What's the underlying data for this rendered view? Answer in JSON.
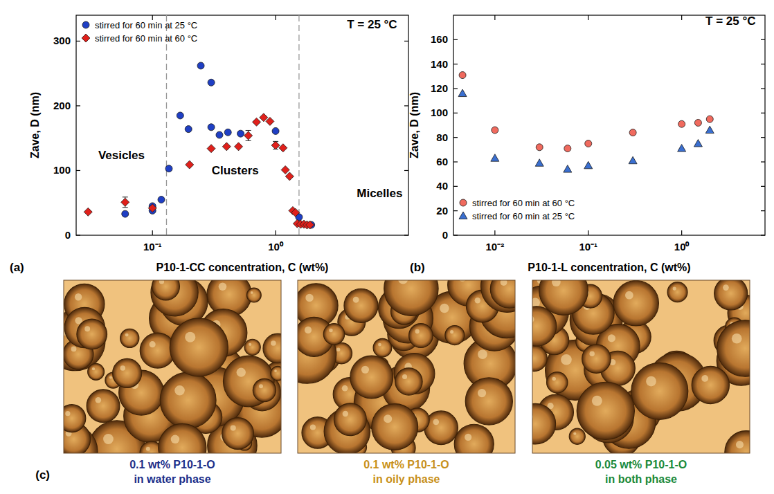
{
  "chart_data": [
    {
      "type": "scatter",
      "panel_label": "(a)",
      "x_label": "P10-1-CC concentration, C (wt%)",
      "y_label": "Zave, D (nm)",
      "log": "x",
      "xlim": [
        0.024,
        12
      ],
      "xticks": [
        {
          "value": 0.1,
          "label": "10⁻¹"
        },
        {
          "value": 1,
          "label": "10⁰"
        }
      ],
      "ylim": [
        0,
        340
      ],
      "yticks": [
        0,
        100,
        200,
        300
      ],
      "legend": "upper left",
      "reference_lines": [
        0.13,
        1.55
      ],
      "annotations": [
        {
          "text": "T = 25 °C",
          "x": 3.8,
          "y": 320
        },
        {
          "text": "Vesicles",
          "x": 0.056,
          "y": 118
        },
        {
          "text": "Clusters",
          "x": 0.47,
          "y": 94
        },
        {
          "text": "Micelles",
          "x": 7.0,
          "y": 59
        }
      ],
      "series": [
        {
          "name": "stirred for 60 min at 25 °C",
          "color": "#1f3fc4",
          "marker": "circle",
          "x": [
            0.06,
            0.1,
            0.1,
            0.118,
            0.136,
            0.168,
            0.196,
            0.247,
            0.3,
            0.3,
            0.35,
            0.41,
            0.52,
            1.0,
            1.55,
            1.95
          ],
          "values": [
            33,
            45,
            38,
            55,
            103,
            185,
            164,
            262,
            236,
            167,
            155,
            159,
            157,
            161,
            28,
            16
          ]
        },
        {
          "name": "stirred for 60 min at 60 °C",
          "color": "#e0201b",
          "marker": "diamond",
          "x": [
            0.03,
            0.06,
            0.1,
            0.2,
            0.3,
            0.4,
            0.5,
            0.6,
            0.7,
            0.8,
            0.9,
            1.0,
            1.15,
            1.2,
            1.3,
            1.38,
            1.45,
            1.5,
            1.6,
            1.7,
            1.8,
            1.9
          ],
          "values": [
            36,
            51,
            42,
            109,
            134,
            137,
            137,
            154,
            175,
            182,
            176,
            139,
            135,
            101,
            91,
            38,
            35,
            18,
            17,
            17,
            16,
            16
          ],
          "errors": [
            null,
            8,
            null,
            null,
            null,
            null,
            null,
            8,
            null,
            null,
            null,
            6,
            null,
            null,
            null,
            null,
            null,
            null,
            null,
            null,
            null,
            null
          ]
        }
      ]
    },
    {
      "type": "scatter",
      "panel_label": "(b)",
      "x_label": "P10-1-L concentration, C (wt%)",
      "y_label": "Zave, D (nm)",
      "log": "x",
      "xlim": [
        0.0036,
        7.8
      ],
      "xticks": [
        {
          "value": 0.01,
          "label": "10⁻²"
        },
        {
          "value": 0.1,
          "label": "10⁻¹"
        },
        {
          "value": 1,
          "label": "10⁰"
        }
      ],
      "ylim": [
        0,
        180
      ],
      "yticks": [
        0,
        20,
        40,
        60,
        80,
        100,
        120,
        140,
        160
      ],
      "legend": "lower left",
      "annotations": [
        {
          "text": "T = 25 °C",
          "x": 1.8,
          "y": 172
        }
      ],
      "series": [
        {
          "name": "stirred for 60 min at 60 °C",
          "color": "#f06a5e",
          "marker": "circle",
          "x": [
            0.0045,
            0.01,
            0.03,
            0.06,
            0.1,
            0.3,
            1.0,
            1.5,
            2.0
          ],
          "values": [
            131,
            86,
            72,
            71,
            75,
            84,
            91,
            92,
            95
          ]
        },
        {
          "name": "stirred for 60 min at 25 °C",
          "color": "#3a6fd0",
          "marker": "triangle",
          "x": [
            0.0045,
            0.01,
            0.03,
            0.06,
            0.1,
            0.3,
            1.0,
            1.5,
            2.0
          ],
          "values": [
            116,
            63,
            59,
            54,
            57,
            61,
            71,
            75,
            86
          ]
        }
      ]
    }
  ],
  "panel_c": {
    "label": "(c)",
    "images": [
      {
        "caption": [
          "0.1 wt% P10-1-O",
          "in water phase"
        ],
        "color": "#1c2f8a"
      },
      {
        "caption": [
          "0.1 wt% P10-1-O",
          "in oily phase"
        ],
        "color": "#c8901a"
      },
      {
        "caption": [
          "0.05 wt% P10-1-O",
          "in both phase"
        ],
        "color": "#1a8a3a"
      }
    ]
  }
}
